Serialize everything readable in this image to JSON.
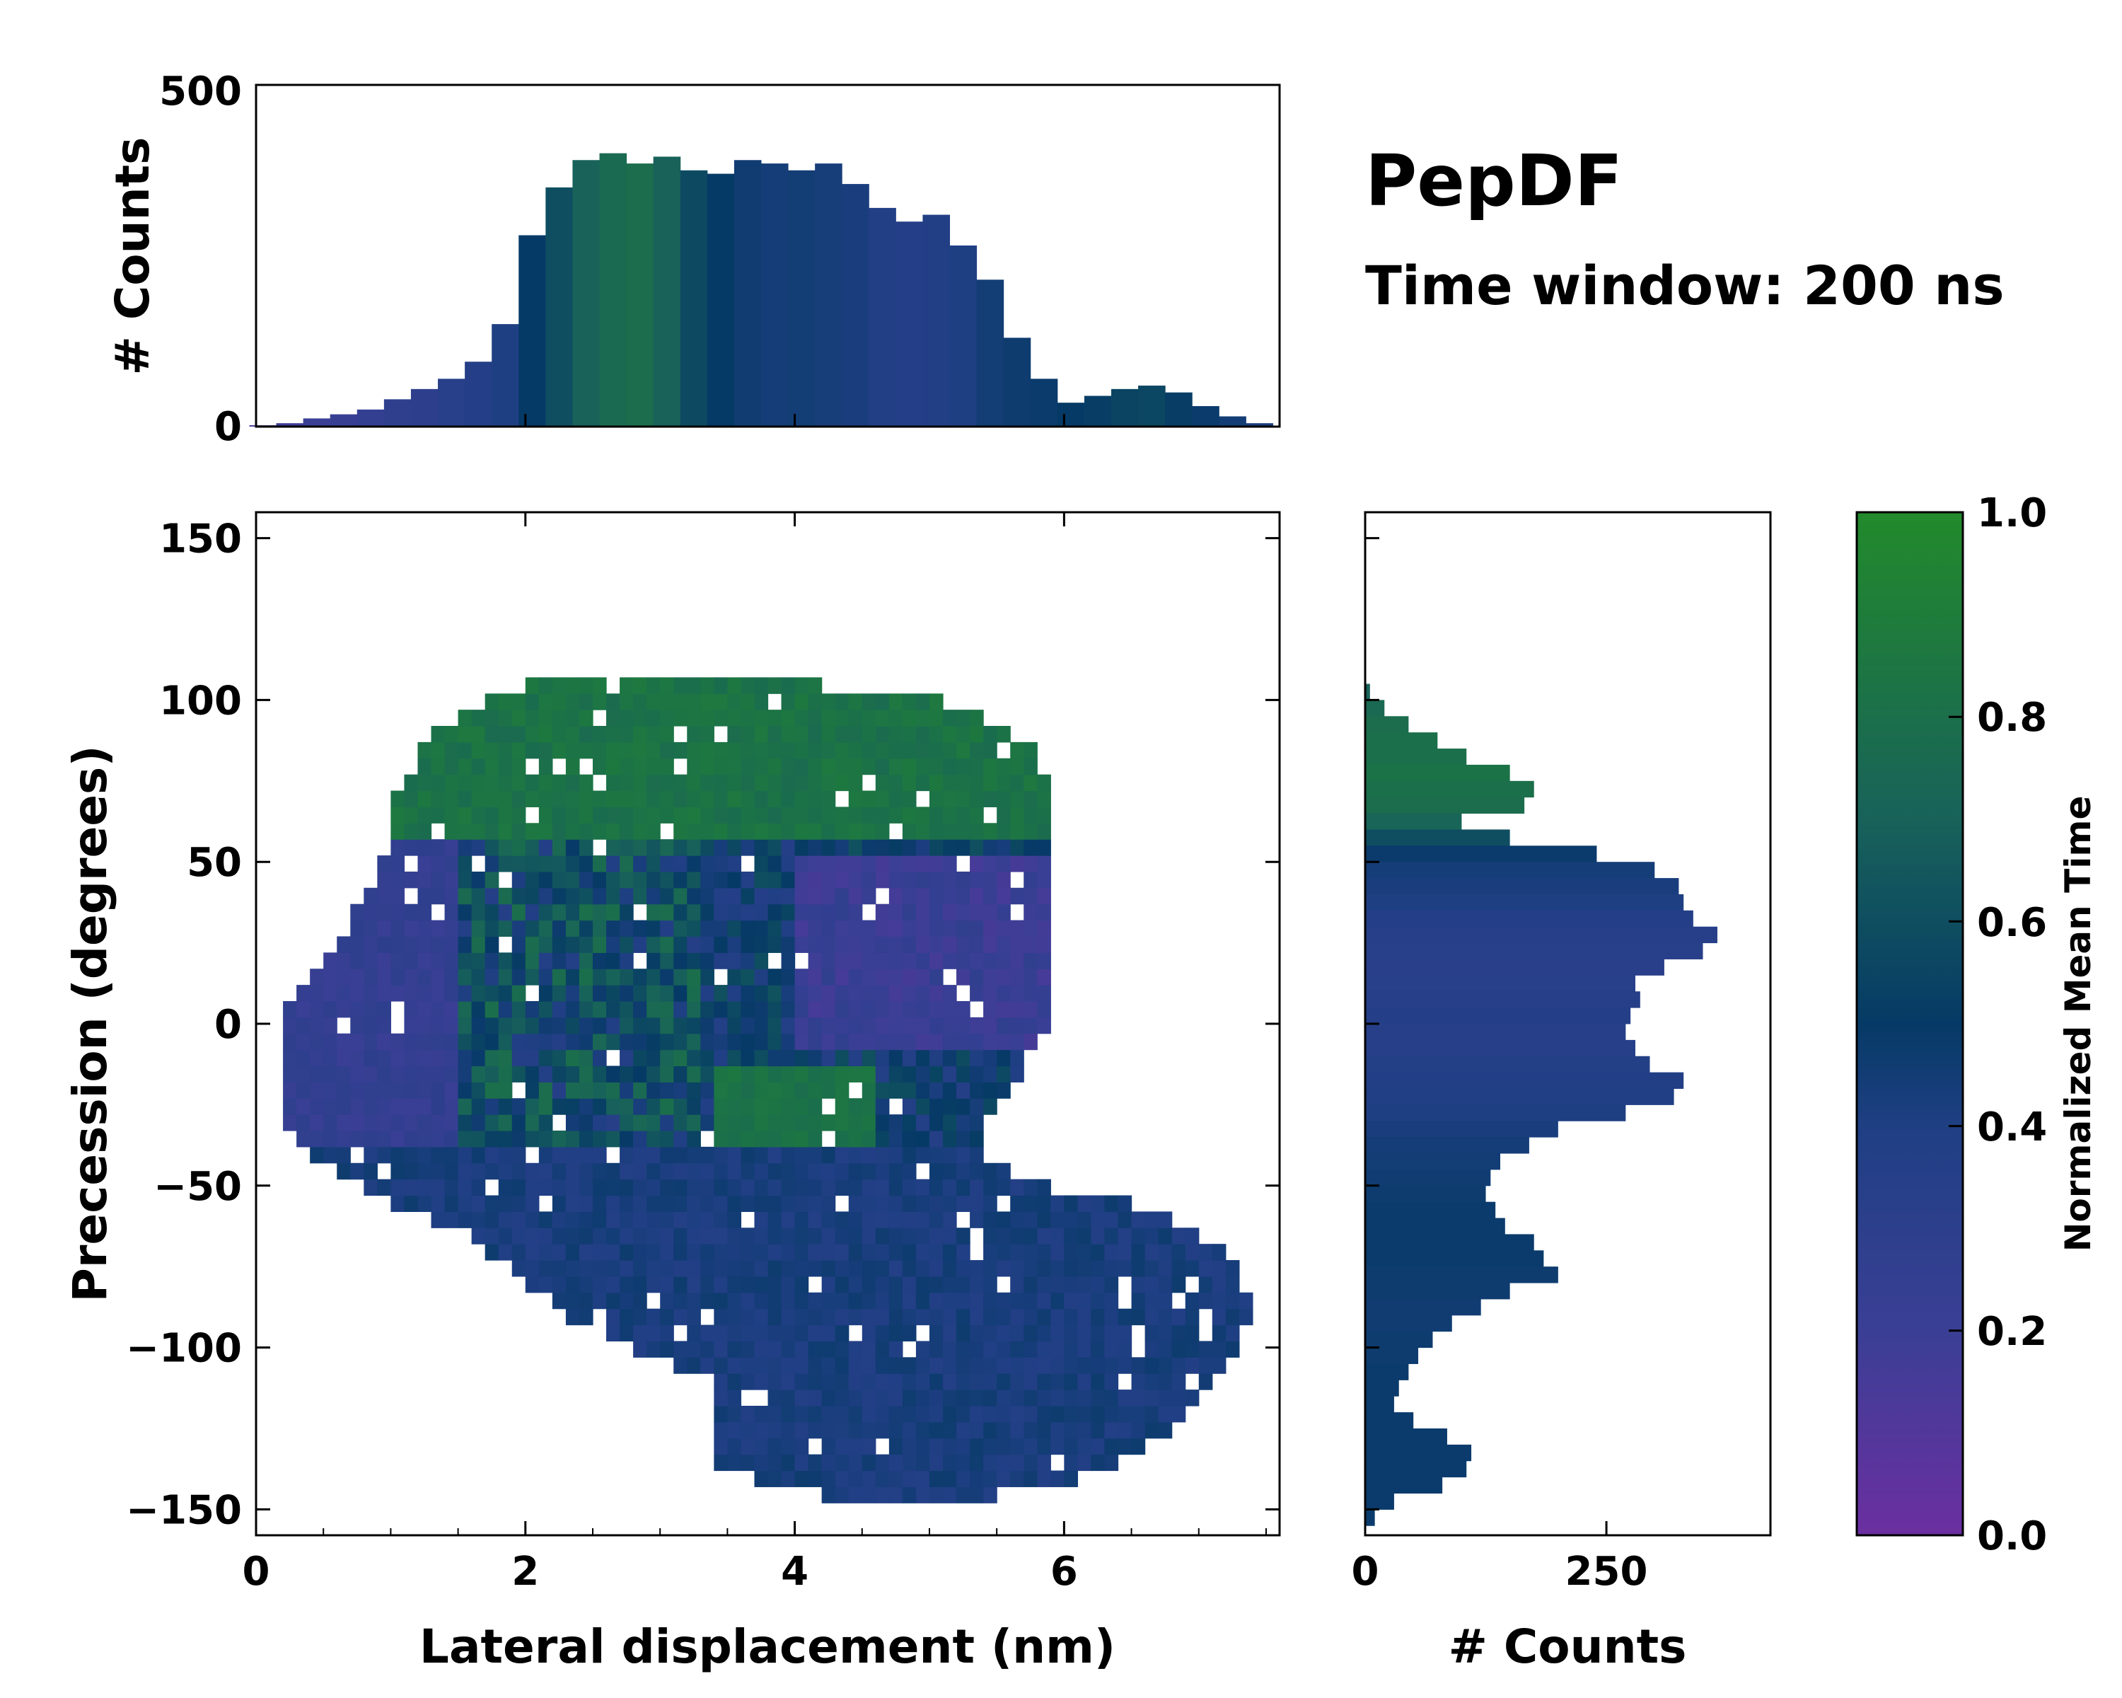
{
  "chart_data": {
    "type": "heatmap",
    "title": "PepDF",
    "subtitle": "Time window: 200 ns",
    "main": {
      "xlabel": "Lateral displacement (nm)",
      "ylabel": "Precession (degrees)",
      "xlim": [
        0,
        7.6
      ],
      "ylim": [
        -158,
        158
      ],
      "xticks": [
        0,
        2,
        4,
        6
      ],
      "yticks": [
        150,
        100,
        50,
        0,
        -50,
        -100,
        -150
      ],
      "ytick_labels": [
        "150",
        "100",
        "50",
        "0",
        "−50",
        "−100",
        "−150"
      ],
      "clusters": [
        {
          "cx": 2.4,
          "cy": 30,
          "sx": 0.9,
          "sy": 42,
          "w": 1.0
        },
        {
          "cx": 4.5,
          "cy": 20,
          "sx": 0.9,
          "sy": 35,
          "w": 1.0
        },
        {
          "cx": 2.8,
          "cy": -15,
          "sx": 1.0,
          "sy": 30,
          "w": 0.9
        },
        {
          "cx": 3.8,
          "cy": 78,
          "sx": 1.3,
          "sy": 18,
          "w": 0.7
        },
        {
          "cx": 4.6,
          "cy": -80,
          "sx": 1.6,
          "sy": 22,
          "w": 0.7
        },
        {
          "cx": 4.8,
          "cy": -132,
          "sx": 1.2,
          "sy": 14,
          "w": 0.5
        },
        {
          "cx": 0.9,
          "cy": -15,
          "sx": 0.6,
          "sy": 25,
          "w": 0.5
        },
        {
          "cx": 6.5,
          "cy": -95,
          "sx": 0.6,
          "sy": 22,
          "w": 0.4
        }
      ]
    },
    "top_hist": {
      "ylabel": "# Counts",
      "ylim": [
        0,
        500
      ],
      "ytick_labels": [
        "500",
        "0"
      ],
      "x": [
        0.05,
        0.25,
        0.45,
        0.65,
        0.85,
        1.05,
        1.25,
        1.45,
        1.65,
        1.85,
        2.05,
        2.25,
        2.45,
        2.65,
        2.85,
        3.05,
        3.25,
        3.45,
        3.65,
        3.85,
        4.05,
        4.25,
        4.45,
        4.65,
        4.85,
        5.05,
        5.25,
        5.45,
        5.65,
        5.85,
        6.05,
        6.25,
        6.45,
        6.65,
        6.85,
        7.05,
        7.25,
        7.45
      ],
      "values": [
        2,
        5,
        12,
        18,
        25,
        40,
        55,
        70,
        95,
        150,
        280,
        350,
        390,
        400,
        385,
        395,
        375,
        370,
        390,
        385,
        375,
        385,
        355,
        320,
        300,
        310,
        265,
        215,
        130,
        70,
        35,
        45,
        55,
        60,
        50,
        30,
        15,
        5
      ],
      "mean_time": [
        0.15,
        0.18,
        0.2,
        0.22,
        0.25,
        0.28,
        0.3,
        0.33,
        0.36,
        0.4,
        0.5,
        0.6,
        0.7,
        0.76,
        0.78,
        0.7,
        0.58,
        0.5,
        0.46,
        0.44,
        0.45,
        0.43,
        0.42,
        0.38,
        0.36,
        0.38,
        0.4,
        0.45,
        0.47,
        0.48,
        0.5,
        0.52,
        0.55,
        0.56,
        0.52,
        0.48,
        0.45,
        0.42
      ]
    },
    "right_hist": {
      "xlabel": "# Counts",
      "xlim": [
        0,
        420
      ],
      "xtick_labels": [
        "0",
        "250"
      ],
      "y": [
        102.5,
        97.5,
        92.5,
        87.5,
        82.5,
        77.5,
        72.5,
        67.5,
        62.5,
        57.5,
        52.5,
        47.5,
        42.5,
        37.5,
        32.5,
        27.5,
        22.5,
        17.5,
        12.5,
        7.5,
        2.5,
        -2.5,
        -7.5,
        -12.5,
        -17.5,
        -22.5,
        -27.5,
        -32.5,
        -37.5,
        -42.5,
        -47.5,
        -52.5,
        -57.5,
        -62.5,
        -67.5,
        -72.5,
        -77.5,
        -82.5,
        -87.5,
        -92.5,
        -97.5,
        -102.5,
        -107.5,
        -112.5,
        -117.5,
        -122.5,
        -127.5,
        -132.5,
        -137.5,
        -142.5,
        -147.5,
        -152.5
      ],
      "values": [
        5,
        20,
        45,
        75,
        105,
        150,
        175,
        165,
        100,
        150,
        240,
        300,
        325,
        330,
        340,
        365,
        350,
        310,
        280,
        285,
        275,
        270,
        280,
        295,
        330,
        320,
        270,
        200,
        170,
        140,
        130,
        125,
        135,
        145,
        175,
        185,
        200,
        150,
        120,
        90,
        70,
        55,
        45,
        35,
        30,
        50,
        85,
        110,
        105,
        80,
        30,
        10
      ],
      "mean_time": [
        0.7,
        0.75,
        0.78,
        0.8,
        0.8,
        0.82,
        0.8,
        0.78,
        0.72,
        0.6,
        0.48,
        0.44,
        0.42,
        0.4,
        0.36,
        0.34,
        0.33,
        0.32,
        0.33,
        0.35,
        0.36,
        0.34,
        0.35,
        0.37,
        0.38,
        0.39,
        0.4,
        0.42,
        0.44,
        0.45,
        0.46,
        0.47,
        0.48,
        0.48,
        0.48,
        0.48,
        0.47,
        0.47,
        0.46,
        0.46,
        0.47,
        0.47,
        0.48,
        0.48,
        0.48,
        0.48,
        0.48,
        0.48,
        0.48,
        0.48,
        0.48,
        0.48
      ]
    },
    "colorbar": {
      "label": "Normalized Mean Time",
      "range": [
        0,
        1
      ],
      "tick_labels": [
        "1.0",
        "0.8",
        "0.6",
        "0.4",
        "0.2",
        "0.0"
      ],
      "tick_values": [
        1.0,
        0.8,
        0.6,
        0.4,
        0.2,
        0.0
      ],
      "colors": [
        "#6b2fa0",
        "#3a3f95",
        "#1f3f83",
        "#063a66",
        "#18625a",
        "#228a2b"
      ]
    }
  }
}
